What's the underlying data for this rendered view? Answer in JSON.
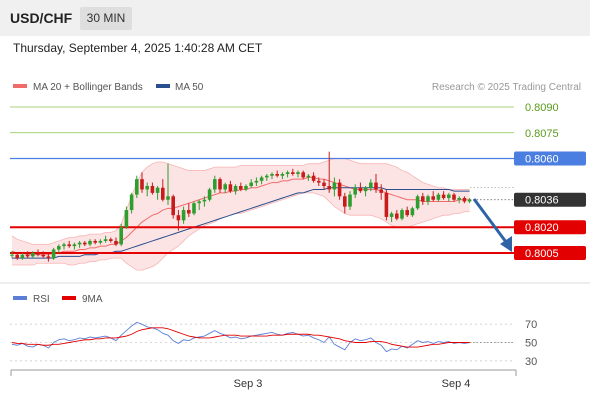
{
  "header": {
    "pair": "USD/CHF",
    "timeframe": "30 MIN"
  },
  "timestamp": "Thursday, September 4, 2025 1:40:28 AM CET",
  "legend": {
    "bb_label": "MA 20 + Bollinger Bands",
    "ma50_label": "MA 50",
    "rsi_label": "RSI",
    "ma9_label": "9MA"
  },
  "watermark": "Research © 2025 Trading Central",
  "colors": {
    "green_level": "#8bc34a",
    "blue_level": "#4a7ee0",
    "red_level": "#e30000",
    "bull": "#2e9e2e",
    "bear": "#c81c1c",
    "bb": "#f26b6b",
    "ma50": "#2a4f8f",
    "rsi": "#5b7fd6"
  },
  "chart_data": [
    {
      "type": "candlestick",
      "x_ticks": [
        "Sep 3",
        "Sep 4"
      ],
      "ylim": [
        0.7998,
        0.8097
      ],
      "levels": [
        {
          "value": 0.809,
          "label": "0.8090",
          "kind": "resistance"
        },
        {
          "value": 0.8075,
          "label": "0.8075",
          "kind": "resistance"
        },
        {
          "value": 0.806,
          "label": "0.8060",
          "kind": "pivot"
        },
        {
          "value": 0.802,
          "label": "0.8020",
          "kind": "support"
        },
        {
          "value": 0.8005,
          "label": "0.8005",
          "kind": "support"
        }
      ],
      "last_price": {
        "value": 0.8036,
        "label": "0.8036"
      },
      "candles": [
        [
          0.8004,
          0.8006,
          0.8002,
          0.8004
        ],
        [
          0.8004,
          0.8005,
          0.8001,
          0.8002
        ],
        [
          0.8002,
          0.8005,
          0.8001,
          0.8004
        ],
        [
          0.8004,
          0.8006,
          0.8002,
          0.8003
        ],
        [
          0.8003,
          0.8006,
          0.8002,
          0.8005
        ],
        [
          0.8005,
          0.8007,
          0.8003,
          0.8004
        ],
        [
          0.8004,
          0.8006,
          0.8002,
          0.8003
        ],
        [
          0.8003,
          0.8005,
          0.8,
          0.8002
        ],
        [
          0.8002,
          0.8008,
          0.8001,
          0.8007
        ],
        [
          0.8007,
          0.801,
          0.8005,
          0.8009
        ],
        [
          0.8009,
          0.8011,
          0.8007,
          0.801
        ],
        [
          0.801,
          0.8012,
          0.8008,
          0.8009
        ],
        [
          0.8009,
          0.8011,
          0.8007,
          0.801
        ],
        [
          0.801,
          0.8012,
          0.8008,
          0.8011
        ],
        [
          0.8011,
          0.8012,
          0.8009,
          0.801
        ],
        [
          0.801,
          0.8013,
          0.8009,
          0.8012
        ],
        [
          0.8012,
          0.8013,
          0.801,
          0.8011
        ],
        [
          0.8011,
          0.8013,
          0.801,
          0.8012
        ],
        [
          0.8012,
          0.8015,
          0.8011,
          0.8013
        ],
        [
          0.8013,
          0.8014,
          0.8011,
          0.8012
        ],
        [
          0.8012,
          0.8014,
          0.8009,
          0.801
        ],
        [
          0.801,
          0.8022,
          0.8009,
          0.802
        ],
        [
          0.802,
          0.8032,
          0.8019,
          0.803
        ],
        [
          0.803,
          0.804,
          0.8028,
          0.8039
        ],
        [
          0.8039,
          0.805,
          0.8037,
          0.8048
        ],
        [
          0.8048,
          0.8052,
          0.804,
          0.8042
        ],
        [
          0.8042,
          0.8046,
          0.8038,
          0.8044
        ],
        [
          0.8044,
          0.8046,
          0.8039,
          0.804
        ],
        [
          0.804,
          0.8044,
          0.8036,
          0.8043
        ],
        [
          0.8043,
          0.8048,
          0.8035,
          0.8036
        ],
        [
          0.8036,
          0.8057,
          0.8033,
          0.8038
        ],
        [
          0.8038,
          0.8039,
          0.8025,
          0.8027
        ],
        [
          0.8027,
          0.803,
          0.8018,
          0.8024
        ],
        [
          0.8024,
          0.8032,
          0.8022,
          0.803
        ],
        [
          0.803,
          0.8034,
          0.8026,
          0.8028
        ],
        [
          0.8028,
          0.8035,
          0.8027,
          0.8034
        ],
        [
          0.8034,
          0.8036,
          0.803,
          0.8035
        ],
        [
          0.8035,
          0.8038,
          0.8032,
          0.8036
        ],
        [
          0.8036,
          0.8043,
          0.8035,
          0.8042
        ],
        [
          0.8042,
          0.805,
          0.804,
          0.8048
        ],
        [
          0.8048,
          0.8049,
          0.804,
          0.8042
        ],
        [
          0.8042,
          0.8046,
          0.804,
          0.8045
        ],
        [
          0.8045,
          0.8047,
          0.804,
          0.8041
        ],
        [
          0.8041,
          0.8045,
          0.8039,
          0.8044
        ],
        [
          0.8044,
          0.8046,
          0.8041,
          0.8042
        ],
        [
          0.8042,
          0.8045,
          0.8041,
          0.8044
        ],
        [
          0.8044,
          0.8048,
          0.8043,
          0.8046
        ],
        [
          0.8046,
          0.8049,
          0.8044,
          0.8047
        ],
        [
          0.8047,
          0.805,
          0.8045,
          0.8049
        ],
        [
          0.8049,
          0.8051,
          0.8047,
          0.805
        ],
        [
          0.805,
          0.8052,
          0.8048,
          0.8051
        ],
        [
          0.8051,
          0.8053,
          0.8049,
          0.805
        ],
        [
          0.805,
          0.8052,
          0.8048,
          0.8051
        ],
        [
          0.8051,
          0.8053,
          0.8049,
          0.8052
        ],
        [
          0.8052,
          0.8054,
          0.805,
          0.8051
        ],
        [
          0.8051,
          0.8053,
          0.8049,
          0.8052
        ],
        [
          0.8052,
          0.8053,
          0.8048,
          0.8049
        ],
        [
          0.8049,
          0.8051,
          0.8047,
          0.805
        ],
        [
          0.805,
          0.8052,
          0.8046,
          0.8047
        ],
        [
          0.8047,
          0.8049,
          0.8044,
          0.8046
        ],
        [
          0.8046,
          0.8048,
          0.8042,
          0.8044
        ],
        [
          0.8044,
          0.8064,
          0.804,
          0.8042
        ],
        [
          0.8042,
          0.8049,
          0.8038,
          0.8046
        ],
        [
          0.8046,
          0.8048,
          0.8036,
          0.8038
        ],
        [
          0.8038,
          0.804,
          0.8028,
          0.8032
        ],
        [
          0.8032,
          0.8041,
          0.803,
          0.8039
        ],
        [
          0.8039,
          0.8045,
          0.8037,
          0.8043
        ],
        [
          0.8043,
          0.8046,
          0.804,
          0.8041
        ],
        [
          0.8041,
          0.8044,
          0.8038,
          0.8043
        ],
        [
          0.8043,
          0.8048,
          0.8041,
          0.8046
        ],
        [
          0.8046,
          0.8051,
          0.804,
          0.8042
        ],
        [
          0.8042,
          0.8045,
          0.8036,
          0.804
        ],
        [
          0.804,
          0.8042,
          0.8024,
          0.8026
        ],
        [
          0.8026,
          0.8029,
          0.8023,
          0.8028
        ],
        [
          0.8028,
          0.803,
          0.8024,
          0.8025
        ],
        [
          0.8025,
          0.8031,
          0.8024,
          0.803
        ],
        [
          0.803,
          0.8032,
          0.8026,
          0.8027
        ],
        [
          0.8027,
          0.8032,
          0.8026,
          0.8031
        ],
        [
          0.8031,
          0.8039,
          0.803,
          0.8038
        ],
        [
          0.8038,
          0.804,
          0.8033,
          0.8035
        ],
        [
          0.8035,
          0.8039,
          0.8033,
          0.8038
        ],
        [
          0.8038,
          0.8041,
          0.8035,
          0.8036
        ],
        [
          0.8036,
          0.804,
          0.8035,
          0.8039
        ],
        [
          0.8039,
          0.8041,
          0.8036,
          0.8037
        ],
        [
          0.8037,
          0.804,
          0.8035,
          0.8039
        ],
        [
          0.8039,
          0.804,
          0.8035,
          0.8036
        ],
        [
          0.8036,
          0.8038,
          0.8034,
          0.8037
        ],
        [
          0.8037,
          0.8038,
          0.8034,
          0.8035
        ],
        [
          0.8035,
          0.8037,
          0.8034,
          0.8036
        ]
      ],
      "ma20": [
        0.8006,
        0.8005,
        0.8005,
        0.8004,
        0.8004,
        0.8004,
        0.8004,
        0.8004,
        0.8005,
        0.8005,
        0.8006,
        0.8006,
        0.8006,
        0.8007,
        0.8007,
        0.8008,
        0.8008,
        0.8009,
        0.8009,
        0.801,
        0.801,
        0.8012,
        0.8014,
        0.8017,
        0.802,
        0.8023,
        0.8025,
        0.8027,
        0.8028,
        0.803,
        0.8031,
        0.8031,
        0.8032,
        0.8033,
        0.8034,
        0.8035,
        0.8036,
        0.8037,
        0.8038,
        0.8039,
        0.804,
        0.804,
        0.8041,
        0.8041,
        0.8042,
        0.8042,
        0.8043,
        0.8043,
        0.8044,
        0.8045,
        0.8046,
        0.8046,
        0.8047,
        0.8047,
        0.8048,
        0.8048,
        0.8048,
        0.8049,
        0.8049,
        0.8048,
        0.8048,
        0.8047,
        0.8046,
        0.8045,
        0.8044,
        0.8043,
        0.8042,
        0.8042,
        0.8042,
        0.8042,
        0.8042,
        0.8041,
        0.804,
        0.8039,
        0.8038,
        0.8037,
        0.8036,
        0.8036,
        0.8036,
        0.8035,
        0.8035,
        0.8035,
        0.8035,
        0.8035,
        0.8035,
        0.8035,
        0.8036,
        0.8036,
        0.8036
      ],
      "bb_upper": [
        0.8015,
        0.8013,
        0.8012,
        0.8011,
        0.801,
        0.801,
        0.801,
        0.801,
        0.8011,
        0.8012,
        0.8013,
        0.8014,
        0.8014,
        0.8015,
        0.8015,
        0.8016,
        0.8016,
        0.8016,
        0.8017,
        0.8017,
        0.8018,
        0.8022,
        0.803,
        0.8038,
        0.8046,
        0.8052,
        0.8055,
        0.8057,
        0.8058,
        0.8058,
        0.8057,
        0.8056,
        0.8055,
        0.8054,
        0.8053,
        0.8053,
        0.8053,
        0.8053,
        0.8054,
        0.8055,
        0.8055,
        0.8055,
        0.8055,
        0.8055,
        0.8056,
        0.8056,
        0.8056,
        0.8056,
        0.8056,
        0.8056,
        0.8056,
        0.8056,
        0.8056,
        0.8056,
        0.8056,
        0.8056,
        0.8056,
        0.8057,
        0.8057,
        0.8057,
        0.8058,
        0.8059,
        0.806,
        0.806,
        0.806,
        0.8059,
        0.8058,
        0.8057,
        0.8057,
        0.8057,
        0.8057,
        0.8057,
        0.8057,
        0.8056,
        0.8055,
        0.8053,
        0.8052,
        0.805,
        0.8048,
        0.8046,
        0.8045,
        0.8044,
        0.8043,
        0.8043,
        0.8042,
        0.8042,
        0.8042,
        0.8042,
        0.8042
      ],
      "bb_lower": [
        0.7998,
        0.7998,
        0.7998,
        0.7998,
        0.7998,
        0.7999,
        0.7999,
        0.7999,
        0.7999,
        0.7999,
        0.7999,
        0.7998,
        0.7998,
        0.7999,
        0.7999,
        0.8,
        0.8,
        0.8001,
        0.8001,
        0.8002,
        0.8002,
        0.8002,
        0.7999,
        0.7997,
        0.7995,
        0.7995,
        0.7996,
        0.7997,
        0.7999,
        0.8002,
        0.8005,
        0.8007,
        0.8009,
        0.8012,
        0.8015,
        0.8017,
        0.8019,
        0.8021,
        0.8022,
        0.8023,
        0.8025,
        0.8026,
        0.8027,
        0.8028,
        0.8028,
        0.8029,
        0.803,
        0.8031,
        0.8032,
        0.8033,
        0.8034,
        0.8035,
        0.8036,
        0.8037,
        0.8038,
        0.8039,
        0.804,
        0.804,
        0.804,
        0.8039,
        0.8038,
        0.8035,
        0.8032,
        0.803,
        0.8028,
        0.8027,
        0.8027,
        0.8027,
        0.8027,
        0.8027,
        0.8026,
        0.8025,
        0.8023,
        0.8021,
        0.802,
        0.802,
        0.802,
        0.8021,
        0.8022,
        0.8023,
        0.8024,
        0.8025,
        0.8026,
        0.8027,
        0.8027,
        0.8028,
        0.8028,
        0.8029,
        0.8029
      ],
      "ma50": [
        0.8002,
        0.8002,
        0.8002,
        0.8002,
        0.8002,
        0.8002,
        0.8002,
        0.8002,
        0.8002,
        0.8003,
        0.8003,
        0.8003,
        0.8003,
        0.8003,
        0.8004,
        0.8004,
        0.8004,
        0.8005,
        0.8005,
        0.8005,
        0.8006,
        0.8006,
        0.8007,
        0.8008,
        0.8009,
        0.801,
        0.8011,
        0.8012,
        0.8013,
        0.8014,
        0.8015,
        0.8016,
        0.8017,
        0.8018,
        0.8019,
        0.802,
        0.8021,
        0.8022,
        0.8023,
        0.8024,
        0.8025,
        0.8026,
        0.8027,
        0.8028,
        0.8029,
        0.803,
        0.8031,
        0.8032,
        0.8033,
        0.8034,
        0.8035,
        0.8036,
        0.8037,
        0.8038,
        0.8039,
        0.804,
        0.804,
        0.8041,
        0.8042,
        0.8042,
        0.8042,
        0.8043,
        0.8043,
        0.8043,
        0.8043,
        0.8043,
        0.8043,
        0.8043,
        0.8043,
        0.8043,
        0.8043,
        0.8043,
        0.8042,
        0.8042,
        0.8042,
        0.8042,
        0.8042,
        0.8042,
        0.8042,
        0.8042,
        0.8042,
        0.8042,
        0.8042,
        0.8042,
        0.8042,
        0.8041,
        0.8041,
        0.8041,
        0.8041
      ]
    },
    {
      "type": "line",
      "name": "RSI panel",
      "y_ticks": [
        70,
        50,
        30
      ],
      "ylim": [
        20,
        80
      ],
      "series": [
        {
          "name": "RSI",
          "values": [
            48,
            47,
            49,
            46,
            45,
            48,
            47,
            44,
            50,
            53,
            54,
            52,
            53,
            55,
            54,
            56,
            55,
            56,
            57,
            55,
            52,
            58,
            63,
            68,
            72,
            70,
            67,
            66,
            64,
            60,
            58,
            52,
            49,
            53,
            52,
            55,
            56,
            57,
            60,
            63,
            60,
            58,
            55,
            56,
            54,
            55,
            57,
            58,
            59,
            60,
            61,
            59,
            58,
            60,
            61,
            59,
            57,
            58,
            55,
            53,
            50,
            56,
            48,
            45,
            42,
            50,
            54,
            52,
            53,
            55,
            50,
            47,
            40,
            43,
            42,
            46,
            44,
            48,
            52,
            50,
            51,
            49,
            51,
            50,
            51,
            49,
            50,
            49,
            50
          ]
        },
        {
          "name": "9MA",
          "values": [
            50,
            49,
            49,
            48,
            48,
            48,
            47,
            47,
            48,
            48,
            49,
            50,
            51,
            52,
            53,
            53,
            54,
            54,
            55,
            55,
            55,
            56,
            57,
            59,
            62,
            64,
            65,
            66,
            66,
            66,
            65,
            63,
            61,
            59,
            57,
            56,
            55,
            55,
            55,
            56,
            57,
            58,
            58,
            58,
            57,
            57,
            57,
            57,
            57,
            57,
            58,
            58,
            58,
            59,
            59,
            59,
            59,
            59,
            58,
            58,
            57,
            56,
            55,
            54,
            52,
            51,
            50,
            50,
            50,
            51,
            51,
            51,
            50,
            48,
            47,
            46,
            45,
            45,
            45,
            46,
            47,
            48,
            48,
            49,
            50,
            50,
            50,
            50,
            50
          ]
        }
      ]
    }
  ]
}
